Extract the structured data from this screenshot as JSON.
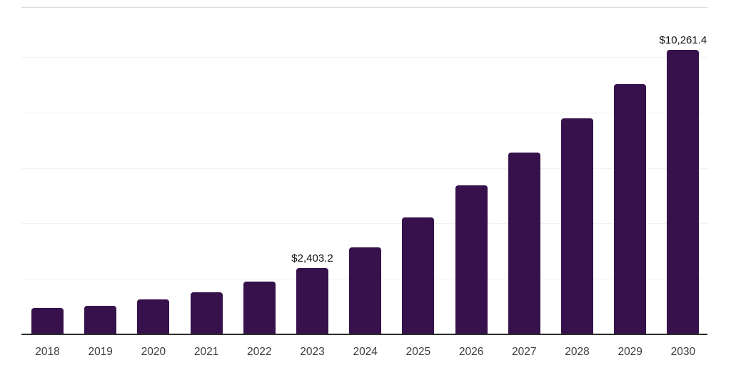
{
  "chart_data": {
    "type": "bar",
    "title": "",
    "categories": [
      "2018",
      "2019",
      "2020",
      "2021",
      "2022",
      "2023",
      "2024",
      "2025",
      "2026",
      "2027",
      "2028",
      "2029",
      "2030"
    ],
    "values": [
      940,
      1040,
      1260,
      1515,
      1890,
      2403.2,
      3130,
      4225,
      5370,
      6560,
      7780,
      9025,
      10261.4
    ],
    "data_labels": {
      "2023": "$2,403.2",
      "2030": "$10,261.4"
    },
    "xlabel": "",
    "ylabel": "",
    "ylim": [
      0,
      11800
    ],
    "gridline_values": [
      2000,
      4000,
      6000,
      8000,
      10000
    ],
    "grid": "horizontal",
    "legend": "none",
    "colors": {
      "bar": "#36114B",
      "axis_line": "#2d2d2d",
      "gridline": "#f2f2f2",
      "top_border": "#dcdcdc",
      "tick_label": "#3c3c3c",
      "data_label": "#111111"
    }
  }
}
